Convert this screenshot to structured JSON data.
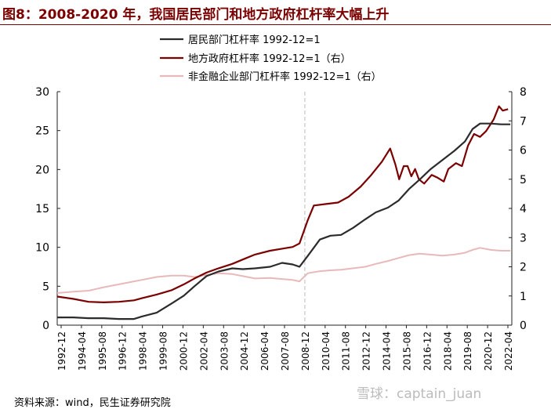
{
  "title": "图8：2008-2020 年，我国居民部门和地方政府杠杆率大幅上升",
  "source": "资料来源：wind，民生证券研究院",
  "watermark": "雪球：captain_juan",
  "colors": {
    "title": "#7b0000",
    "household": "#2b2b2b",
    "local_gov": "#7b0000",
    "nonfin": "#e8b9b9",
    "marker": "#bbbbbb"
  },
  "chart_data": {
    "type": "line",
    "title": "",
    "xlabel": "",
    "ylabel_left": "",
    "ylabel_right": "",
    "x_ticks": [
      "1992-12",
      "1994-04",
      "1995-08",
      "1996-12",
      "1998-04",
      "1999-08",
      "2000-12",
      "2002-04",
      "2003-08",
      "2004-12",
      "2006-04",
      "2007-08",
      "2008-12",
      "2010-04",
      "2011-08",
      "2012-12",
      "2014-04",
      "2015-08",
      "2016-12",
      "2018-04",
      "2019-08",
      "2020-12",
      "2022-04"
    ],
    "y_left": {
      "min": 0,
      "max": 30,
      "ticks": [
        "0",
        "5",
        "10",
        "15",
        "20",
        "25",
        "30"
      ]
    },
    "y_right": {
      "min": 0,
      "max": 8,
      "ticks": [
        "0",
        "1",
        "2",
        "3",
        "4",
        "5",
        "6",
        "7",
        "8"
      ]
    },
    "grid": false,
    "legend_position": "top-center",
    "vline_at": "2008-12",
    "series": [
      {
        "name": "居民部门杠杆率 1992-12=1",
        "axis": "left",
        "color": "household",
        "points": [
          [
            1992.92,
            1.0
          ],
          [
            1994.0,
            1.0
          ],
          [
            1995.0,
            0.9
          ],
          [
            1996.0,
            0.9
          ],
          [
            1997.0,
            0.8
          ],
          [
            1998.0,
            0.8
          ],
          [
            1998.5,
            1.1
          ],
          [
            1999.5,
            1.6
          ],
          [
            2000.5,
            2.8
          ],
          [
            2001.3,
            3.8
          ],
          [
            2002.0,
            5.0
          ],
          [
            2002.8,
            6.3
          ],
          [
            2003.6,
            6.9
          ],
          [
            2004.5,
            7.3
          ],
          [
            2005.2,
            7.2
          ],
          [
            2006.0,
            7.3
          ],
          [
            2007.0,
            7.5
          ],
          [
            2007.8,
            8.0
          ],
          [
            2008.5,
            7.8
          ],
          [
            2008.95,
            7.5
          ],
          [
            2009.5,
            8.9
          ],
          [
            2010.3,
            11.0
          ],
          [
            2011.0,
            11.5
          ],
          [
            2011.7,
            11.6
          ],
          [
            2012.5,
            12.5
          ],
          [
            2013.3,
            13.6
          ],
          [
            2014.0,
            14.5
          ],
          [
            2014.8,
            15.1
          ],
          [
            2015.5,
            16.0
          ],
          [
            2016.2,
            17.5
          ],
          [
            2016.9,
            18.7
          ],
          [
            2017.6,
            20.0
          ],
          [
            2018.4,
            21.2
          ],
          [
            2019.2,
            22.4
          ],
          [
            2019.9,
            23.6
          ],
          [
            2020.4,
            25.2
          ],
          [
            2020.9,
            25.9
          ],
          [
            2021.6,
            25.9
          ],
          [
            2022.3,
            25.8
          ],
          [
            2022.9,
            25.8
          ]
        ]
      },
      {
        "name": "地方政府杠杆率 1992-12=1（右）",
        "axis": "right",
        "color": "local_gov",
        "points": [
          [
            1992.92,
            0.98
          ],
          [
            1994.0,
            0.9
          ],
          [
            1995.0,
            0.8
          ],
          [
            1996.0,
            0.78
          ],
          [
            1997.0,
            0.8
          ],
          [
            1998.0,
            0.85
          ],
          [
            1998.5,
            0.92
          ],
          [
            1999.5,
            1.05
          ],
          [
            2000.5,
            1.2
          ],
          [
            2001.3,
            1.4
          ],
          [
            2002.0,
            1.6
          ],
          [
            2002.8,
            1.8
          ],
          [
            2003.6,
            1.95
          ],
          [
            2004.5,
            2.1
          ],
          [
            2005.2,
            2.25
          ],
          [
            2006.0,
            2.42
          ],
          [
            2007.0,
            2.55
          ],
          [
            2007.8,
            2.62
          ],
          [
            2008.5,
            2.68
          ],
          [
            2008.95,
            2.8
          ],
          [
            2009.5,
            3.6
          ],
          [
            2009.9,
            4.1
          ],
          [
            2010.7,
            4.15
          ],
          [
            2011.5,
            4.2
          ],
          [
            2012.2,
            4.4
          ],
          [
            2013.0,
            4.75
          ],
          [
            2013.7,
            5.15
          ],
          [
            2014.4,
            5.6
          ],
          [
            2014.95,
            6.05
          ],
          [
            2015.3,
            5.5
          ],
          [
            2015.55,
            5.0
          ],
          [
            2015.85,
            5.45
          ],
          [
            2016.1,
            5.45
          ],
          [
            2016.35,
            5.1
          ],
          [
            2016.6,
            5.35
          ],
          [
            2016.85,
            5.0
          ],
          [
            2017.2,
            4.85
          ],
          [
            2017.7,
            5.15
          ],
          [
            2018.1,
            5.05
          ],
          [
            2018.5,
            4.92
          ],
          [
            2018.8,
            5.35
          ],
          [
            2019.3,
            5.55
          ],
          [
            2019.7,
            5.45
          ],
          [
            2020.1,
            6.15
          ],
          [
            2020.5,
            6.55
          ],
          [
            2020.9,
            6.45
          ],
          [
            2021.3,
            6.65
          ],
          [
            2021.8,
            7.05
          ],
          [
            2022.15,
            7.5
          ],
          [
            2022.4,
            7.35
          ],
          [
            2022.75,
            7.4
          ]
        ]
      },
      {
        "name": "非金融企业部门杠杆率 1992-12=1（右）",
        "axis": "right",
        "color": "nonfin",
        "points": [
          [
            1992.92,
            1.1
          ],
          [
            1994.0,
            1.15
          ],
          [
            1995.0,
            1.18
          ],
          [
            1996.0,
            1.3
          ],
          [
            1997.0,
            1.4
          ],
          [
            1998.0,
            1.5
          ],
          [
            1998.5,
            1.55
          ],
          [
            1999.5,
            1.65
          ],
          [
            2000.5,
            1.7
          ],
          [
            2001.3,
            1.7
          ],
          [
            2002.0,
            1.65
          ],
          [
            2002.8,
            1.72
          ],
          [
            2003.6,
            1.78
          ],
          [
            2004.5,
            1.75
          ],
          [
            2005.2,
            1.68
          ],
          [
            2006.0,
            1.6
          ],
          [
            2007.0,
            1.62
          ],
          [
            2007.8,
            1.58
          ],
          [
            2008.5,
            1.55
          ],
          [
            2008.95,
            1.5
          ],
          [
            2009.5,
            1.78
          ],
          [
            2010.3,
            1.85
          ],
          [
            2011.0,
            1.88
          ],
          [
            2011.7,
            1.9
          ],
          [
            2012.5,
            1.95
          ],
          [
            2013.3,
            2.0
          ],
          [
            2014.0,
            2.1
          ],
          [
            2014.8,
            2.2
          ],
          [
            2015.5,
            2.3
          ],
          [
            2016.2,
            2.4
          ],
          [
            2016.9,
            2.45
          ],
          [
            2017.6,
            2.42
          ],
          [
            2018.4,
            2.38
          ],
          [
            2019.2,
            2.42
          ],
          [
            2019.9,
            2.48
          ],
          [
            2020.4,
            2.58
          ],
          [
            2020.9,
            2.65
          ],
          [
            2021.6,
            2.58
          ],
          [
            2022.3,
            2.55
          ],
          [
            2022.9,
            2.55
          ]
        ]
      }
    ]
  }
}
